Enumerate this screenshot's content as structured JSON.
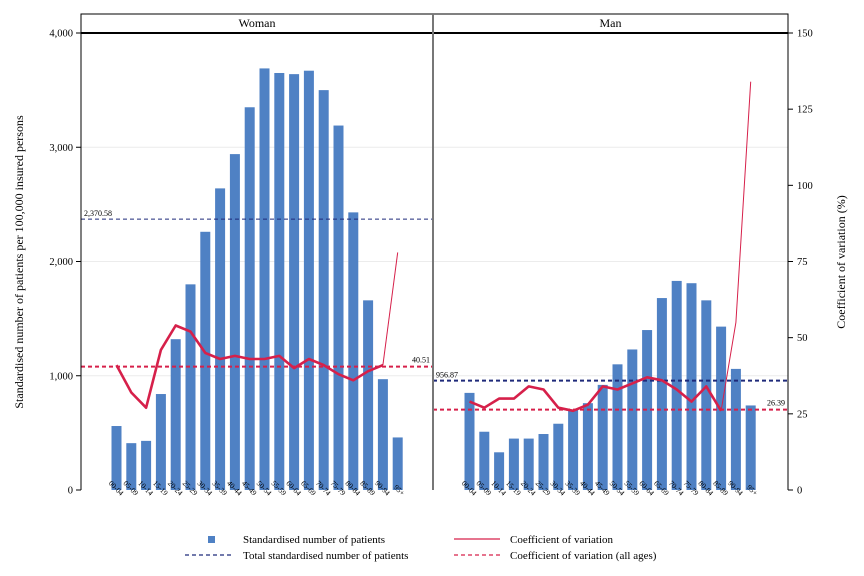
{
  "chart_data": {
    "type": "bar",
    "ylabel_left": "Standardised number of patients per 100,000 insured persons",
    "ylabel_right": "Coefficient of variation (%)",
    "ylim_left": [
      0,
      4000
    ],
    "ylim_right": [
      0,
      150
    ],
    "yticks_left": [
      "0",
      "1,000",
      "2,000",
      "3,000",
      "4,000"
    ],
    "yticks_right": [
      "0",
      "25",
      "50",
      "75",
      "100",
      "125",
      "150"
    ],
    "categories": [
      "00-04",
      "05-09",
      "10-14",
      "15-19",
      "20-24",
      "25-29",
      "30-34",
      "35-39",
      "40-44",
      "45-49",
      "50-54",
      "55-59",
      "60-64",
      "65-69",
      "70-74",
      "75-79",
      "80-84",
      "85-89",
      "90-94",
      "95+"
    ],
    "grid": true,
    "legend_position": "bottom",
    "legend": {
      "bars": "Standardised number of patients",
      "total": "Total standardised number of patients",
      "cv": "Coefficient of variation",
      "cv_all": "Coefficient of variation (all ages)"
    },
    "colors": {
      "bars": "#4f81c4",
      "total": "#1f2a7a",
      "cv": "#d6204a",
      "cv_all": "#d6204a",
      "panel_border": "#000000"
    },
    "panels": [
      {
        "title": "Woman",
        "patients": [
          560,
          410,
          430,
          840,
          1320,
          1800,
          2260,
          2640,
          2940,
          3350,
          3690,
          3650,
          3640,
          3670,
          3500,
          3190,
          2430,
          1660,
          970,
          460
        ],
        "cv": [
          41,
          32,
          27,
          46,
          54,
          52,
          45,
          43,
          44,
          43,
          43,
          44,
          40,
          43,
          41,
          38,
          36,
          39,
          41,
          78
        ],
        "cv_thin_from": 18,
        "total_patients": 2370.58,
        "total_label": "2,370.58",
        "cv_all_ages": 40.51,
        "cv_all_label": "40.51"
      },
      {
        "title": "Man",
        "patients": [
          850,
          510,
          330,
          450,
          450,
          490,
          580,
          700,
          760,
          920,
          1100,
          1230,
          1400,
          1680,
          1830,
          1810,
          1660,
          1430,
          1060,
          740
        ],
        "cv": [
          29,
          27,
          30,
          30,
          34,
          33,
          27,
          26,
          28,
          34,
          33,
          35,
          37,
          36,
          33,
          29,
          34,
          26,
          55,
          134
        ],
        "cv_thin_from": 17,
        "total_patients": 956.87,
        "total_label": "956.87",
        "cv_all_ages": 26.39,
        "cv_all_label": "26.39"
      }
    ]
  }
}
